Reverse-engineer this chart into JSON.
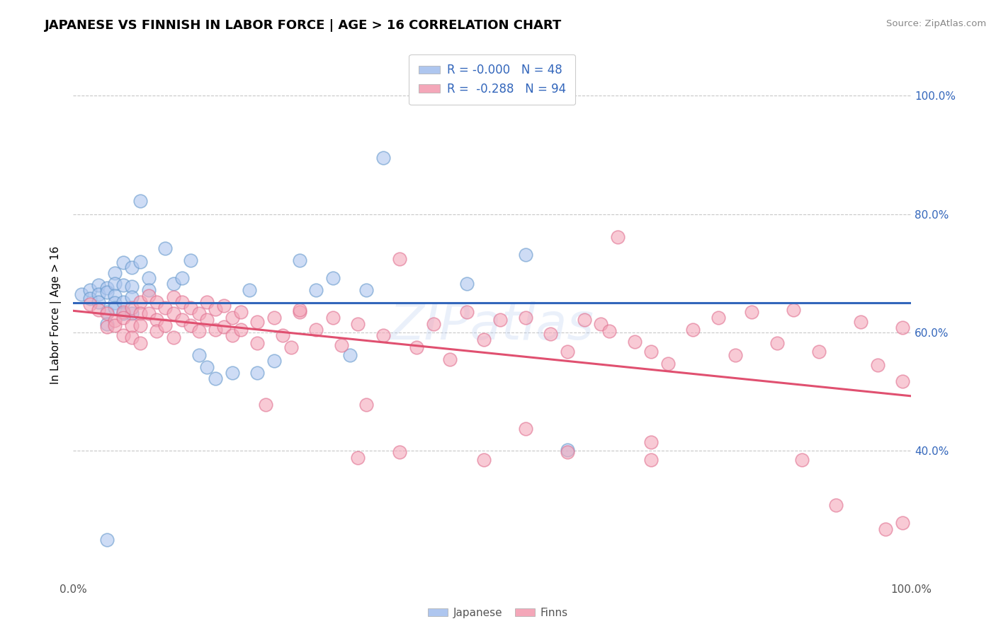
{
  "title": "JAPANESE VS FINNISH IN LABOR FORCE | AGE > 16 CORRELATION CHART",
  "source_text": "Source: ZipAtlas.com",
  "ylabel": "In Labor Force | Age > 16",
  "xlim": [
    0.0,
    1.0
  ],
  "ylim": [
    0.18,
    1.08
  ],
  "y_ticks": [
    0.4,
    0.6,
    0.8,
    1.0
  ],
  "y_tick_labels_right": [
    "40.0%",
    "60.0%",
    "80.0%",
    "100.0%"
  ],
  "x_tick_labels": [
    "0.0%",
    "",
    "",
    "",
    "",
    "100.0%"
  ],
  "watermark": "ZIPatlas",
  "japanese_color": "#aec6ef",
  "finnish_color": "#f4a7b9",
  "japanese_edge_color": "#6699cc",
  "finnish_edge_color": "#e07090",
  "japanese_trend_color": "#3366bb",
  "finnish_trend_color": "#e05070",
  "grid_color": "#c8c8c8",
  "background_color": "#ffffff",
  "right_tick_color": "#3366bb",
  "japanese_points": [
    [
      0.01,
      0.665
    ],
    [
      0.02,
      0.672
    ],
    [
      0.02,
      0.658
    ],
    [
      0.03,
      0.68
    ],
    [
      0.03,
      0.665
    ],
    [
      0.03,
      0.652
    ],
    [
      0.04,
      0.675
    ],
    [
      0.04,
      0.668
    ],
    [
      0.04,
      0.635
    ],
    [
      0.04,
      0.615
    ],
    [
      0.05,
      0.7
    ],
    [
      0.05,
      0.682
    ],
    [
      0.05,
      0.662
    ],
    [
      0.05,
      0.65
    ],
    [
      0.05,
      0.642
    ],
    [
      0.06,
      0.718
    ],
    [
      0.06,
      0.68
    ],
    [
      0.06,
      0.652
    ],
    [
      0.06,
      0.632
    ],
    [
      0.07,
      0.71
    ],
    [
      0.07,
      0.678
    ],
    [
      0.07,
      0.66
    ],
    [
      0.07,
      0.632
    ],
    [
      0.08,
      0.822
    ],
    [
      0.08,
      0.72
    ],
    [
      0.09,
      0.692
    ],
    [
      0.09,
      0.672
    ],
    [
      0.11,
      0.742
    ],
    [
      0.12,
      0.682
    ],
    [
      0.13,
      0.692
    ],
    [
      0.14,
      0.722
    ],
    [
      0.15,
      0.562
    ],
    [
      0.16,
      0.542
    ],
    [
      0.17,
      0.522
    ],
    [
      0.19,
      0.532
    ],
    [
      0.21,
      0.672
    ],
    [
      0.22,
      0.532
    ],
    [
      0.24,
      0.552
    ],
    [
      0.27,
      0.722
    ],
    [
      0.29,
      0.672
    ],
    [
      0.31,
      0.692
    ],
    [
      0.33,
      0.562
    ],
    [
      0.35,
      0.672
    ],
    [
      0.37,
      0.895
    ],
    [
      0.04,
      0.25
    ],
    [
      0.47,
      0.682
    ],
    [
      0.54,
      0.732
    ],
    [
      0.59,
      0.402
    ]
  ],
  "finnish_points": [
    [
      0.02,
      0.648
    ],
    [
      0.03,
      0.638
    ],
    [
      0.04,
      0.632
    ],
    [
      0.04,
      0.61
    ],
    [
      0.05,
      0.62
    ],
    [
      0.05,
      0.612
    ],
    [
      0.06,
      0.635
    ],
    [
      0.06,
      0.625
    ],
    [
      0.06,
      0.595
    ],
    [
      0.07,
      0.642
    ],
    [
      0.07,
      0.612
    ],
    [
      0.07,
      0.592
    ],
    [
      0.08,
      0.652
    ],
    [
      0.08,
      0.632
    ],
    [
      0.08,
      0.612
    ],
    [
      0.08,
      0.582
    ],
    [
      0.09,
      0.662
    ],
    [
      0.09,
      0.632
    ],
    [
      0.1,
      0.652
    ],
    [
      0.1,
      0.622
    ],
    [
      0.1,
      0.602
    ],
    [
      0.11,
      0.642
    ],
    [
      0.11,
      0.612
    ],
    [
      0.12,
      0.66
    ],
    [
      0.12,
      0.632
    ],
    [
      0.12,
      0.592
    ],
    [
      0.13,
      0.652
    ],
    [
      0.13,
      0.622
    ],
    [
      0.14,
      0.642
    ],
    [
      0.14,
      0.612
    ],
    [
      0.15,
      0.632
    ],
    [
      0.15,
      0.602
    ],
    [
      0.16,
      0.652
    ],
    [
      0.16,
      0.622
    ],
    [
      0.17,
      0.64
    ],
    [
      0.17,
      0.605
    ],
    [
      0.18,
      0.645
    ],
    [
      0.18,
      0.61
    ],
    [
      0.19,
      0.625
    ],
    [
      0.19,
      0.595
    ],
    [
      0.2,
      0.635
    ],
    [
      0.2,
      0.605
    ],
    [
      0.22,
      0.618
    ],
    [
      0.22,
      0.582
    ],
    [
      0.24,
      0.625
    ],
    [
      0.25,
      0.595
    ],
    [
      0.26,
      0.575
    ],
    [
      0.27,
      0.635
    ],
    [
      0.29,
      0.605
    ],
    [
      0.31,
      0.625
    ],
    [
      0.32,
      0.578
    ],
    [
      0.34,
      0.615
    ],
    [
      0.35,
      0.478
    ],
    [
      0.37,
      0.595
    ],
    [
      0.39,
      0.725
    ],
    [
      0.41,
      0.575
    ],
    [
      0.43,
      0.615
    ],
    [
      0.45,
      0.555
    ],
    [
      0.47,
      0.635
    ],
    [
      0.49,
      0.588
    ],
    [
      0.51,
      0.622
    ],
    [
      0.54,
      0.438
    ],
    [
      0.57,
      0.598
    ],
    [
      0.59,
      0.568
    ],
    [
      0.61,
      0.622
    ],
    [
      0.63,
      0.615
    ],
    [
      0.64,
      0.602
    ],
    [
      0.65,
      0.762
    ],
    [
      0.67,
      0.585
    ],
    [
      0.69,
      0.568
    ],
    [
      0.71,
      0.548
    ],
    [
      0.74,
      0.605
    ],
    [
      0.77,
      0.625
    ],
    [
      0.79,
      0.562
    ],
    [
      0.81,
      0.635
    ],
    [
      0.84,
      0.582
    ],
    [
      0.23,
      0.478
    ],
    [
      0.34,
      0.388
    ],
    [
      0.49,
      0.385
    ],
    [
      0.59,
      0.398
    ],
    [
      0.39,
      0.398
    ],
    [
      0.69,
      0.385
    ],
    [
      0.54,
      0.625
    ],
    [
      0.27,
      0.638
    ],
    [
      0.87,
      0.385
    ],
    [
      0.89,
      0.568
    ],
    [
      0.91,
      0.308
    ],
    [
      0.94,
      0.618
    ],
    [
      0.96,
      0.545
    ],
    [
      0.97,
      0.268
    ],
    [
      0.99,
      0.278
    ],
    [
      0.99,
      0.518
    ],
    [
      0.99,
      0.608
    ],
    [
      0.86,
      0.638
    ],
    [
      0.69,
      0.415
    ]
  ]
}
